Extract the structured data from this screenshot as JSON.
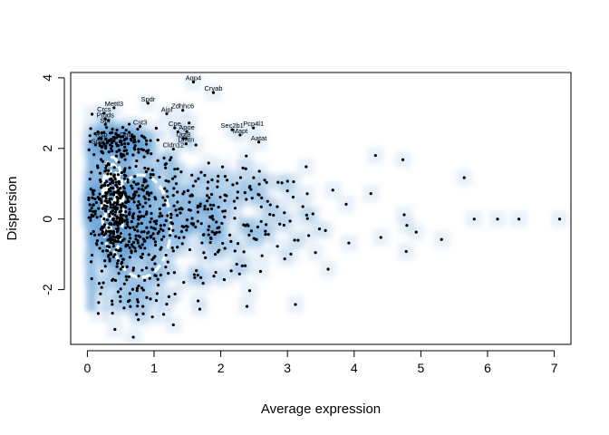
{
  "chart_data": {
    "type": "scatter",
    "title": "",
    "xlabel": "Average expression",
    "ylabel": "Dispersion",
    "xlim": [
      -0.25,
      7.25
    ],
    "ylim": [
      -3.55,
      4.15
    ],
    "xticks": [
      0,
      1,
      2,
      3,
      4,
      5,
      6,
      7
    ],
    "yticks": [
      -2,
      0,
      2,
      4
    ],
    "grid": false,
    "legend": "none",
    "colors": {
      "point": "#000000",
      "density": "#5b9bd5",
      "contour": "#ffffff"
    },
    "labeled_genes": [
      {
        "label": "Aqp4",
        "x": 1.59,
        "y": 3.88
      },
      {
        "label": "Cryab",
        "x": 1.89,
        "y": 3.58
      },
      {
        "label": "Spdr",
        "x": 0.91,
        "y": 3.28
      },
      {
        "label": "Zdhhc6",
        "x": 1.43,
        "y": 3.08
      },
      {
        "label": "Aipl",
        "x": 1.19,
        "y": 2.98
      },
      {
        "label": "Mettl3",
        "x": 0.4,
        "y": 3.15
      },
      {
        "label": "Crcs",
        "x": 0.25,
        "y": 3.0
      },
      {
        "label": "Ptgds",
        "x": 0.27,
        "y": 2.83
      },
      {
        "label": "Spr",
        "x": 0.27,
        "y": 2.68
      },
      {
        "label": "Cst3",
        "x": 0.79,
        "y": 2.62
      },
      {
        "label": "Cpe",
        "x": 1.31,
        "y": 2.58
      },
      {
        "label": "Apoe",
        "x": 1.49,
        "y": 2.48
      },
      {
        "label": "Ugt8",
        "x": 1.44,
        "y": 2.28
      },
      {
        "label": "Dmtn",
        "x": 1.48,
        "y": 2.13
      },
      {
        "label": "Cldn12",
        "x": 1.29,
        "y": 1.98
      },
      {
        "label": "Sec2b1",
        "x": 2.17,
        "y": 2.53
      },
      {
        "label": "Pcp4l1",
        "x": 2.49,
        "y": 2.58
      },
      {
        "label": "Mapt",
        "x": 2.29,
        "y": 2.38
      },
      {
        "label": "Aatat",
        "x": 2.57,
        "y": 2.18
      },
      {
        "label": "Cntn",
        "x": 0.59,
        "y": 2.28
      },
      {
        "label": "Rsp",
        "x": 0.21,
        "y": 2.28
      },
      {
        "label": "Sparc",
        "x": 0.19,
        "y": 2.08
      }
    ],
    "outliers": [
      {
        "x": 7.08,
        "y": 0.0
      },
      {
        "x": 6.47,
        "y": 0.0
      },
      {
        "x": 6.15,
        "y": 0.0
      },
      {
        "x": 5.8,
        "y": 0.0
      },
      {
        "x": 5.65,
        "y": 1.17
      },
      {
        "x": 5.31,
        "y": -0.58
      },
      {
        "x": 4.79,
        "y": -0.18
      },
      {
        "x": 4.75,
        "y": 0.12
      },
      {
        "x": 4.73,
        "y": 1.68
      },
      {
        "x": 4.78,
        "y": -0.92
      },
      {
        "x": 4.4,
        "y": -0.52
      },
      {
        "x": 4.32,
        "y": 1.8
      },
      {
        "x": 4.25,
        "y": 0.72
      },
      {
        "x": 3.92,
        "y": -0.68
      },
      {
        "x": 3.68,
        "y": 0.82
      },
      {
        "x": 3.61,
        "y": -1.42
      },
      {
        "x": 3.48,
        "y": -0.28
      },
      {
        "x": 3.28,
        "y": 1.48
      },
      {
        "x": 3.12,
        "y": -2.42
      },
      {
        "x": 3.88,
        "y": 0.42
      },
      {
        "x": 4.93,
        "y": -0.37
      },
      {
        "x": 3.42,
        "y": -0.95
      }
    ],
    "clusters": [
      {
        "cx": 0.4,
        "cy": 0.2,
        "sx": 0.16,
        "sy": 0.95,
        "n": 260
      },
      {
        "cx": 0.7,
        "cy": 0.3,
        "sx": 0.35,
        "sy": 1.0,
        "n": 220
      },
      {
        "cx": 1.3,
        "cy": 0.0,
        "sx": 0.55,
        "sy": 1.0,
        "n": 190
      },
      {
        "cx": 2.2,
        "cy": 0.1,
        "sx": 0.55,
        "sy": 0.85,
        "n": 110
      },
      {
        "cx": 0.5,
        "cy": 2.2,
        "sx": 0.25,
        "sy": 0.18,
        "n": 80
      },
      {
        "cx": 0.6,
        "cy": -2.3,
        "sx": 0.3,
        "sy": 0.45,
        "n": 45
      }
    ]
  }
}
